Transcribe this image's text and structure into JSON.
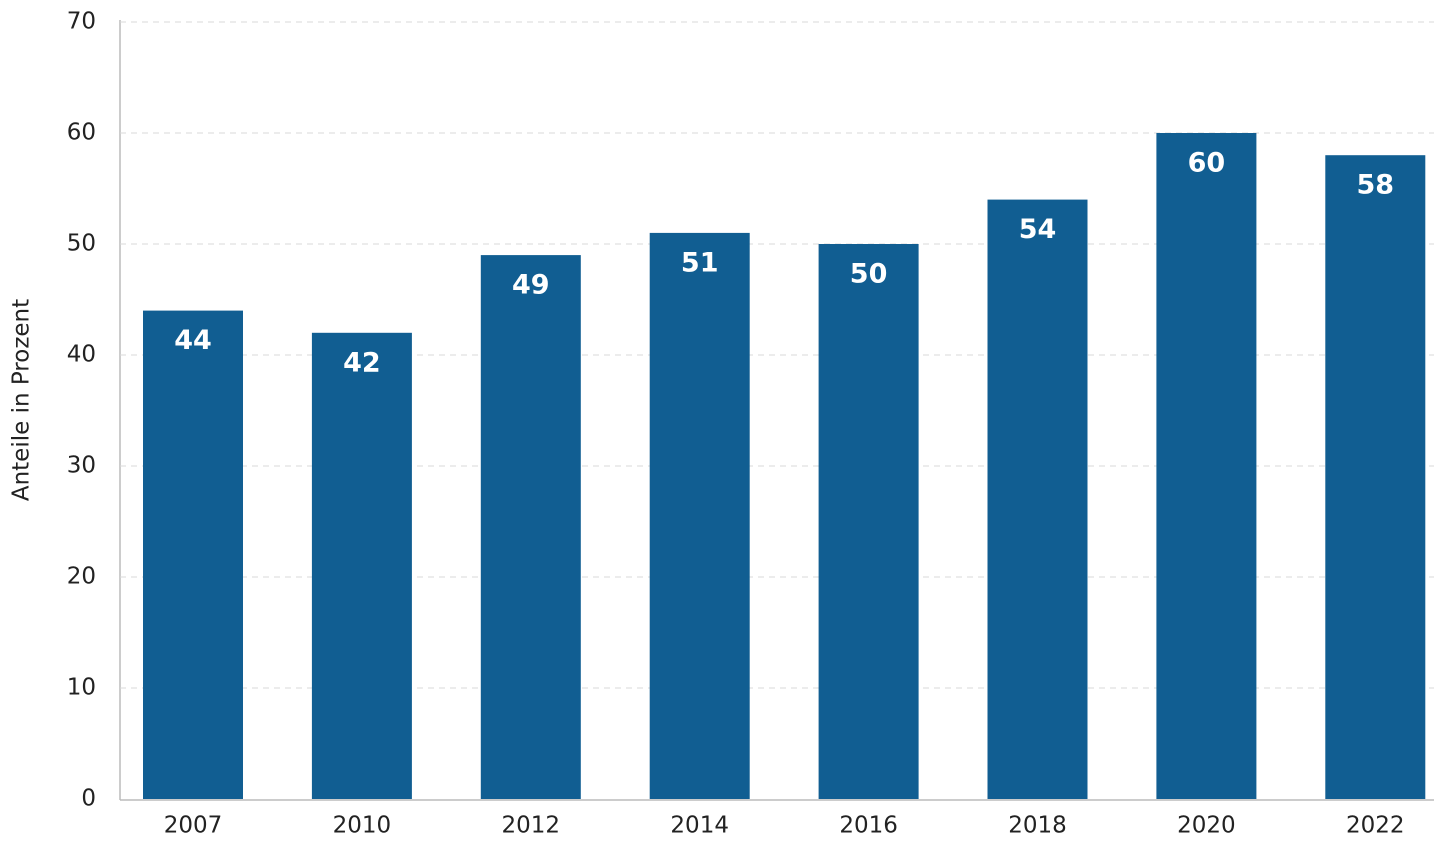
{
  "chart_data": {
    "type": "bar",
    "y_label": "Anteile in Prozent",
    "categories": [
      "2007",
      "2010",
      "2012",
      "2014",
      "2016",
      "2018",
      "2020",
      "2022"
    ],
    "values": [
      44,
      42,
      49,
      51,
      50,
      54,
      60,
      58
    ],
    "color": "#115e92",
    "ylim": [
      0,
      70
    ],
    "yticks": [
      0,
      10,
      20,
      30,
      40,
      50,
      60,
      70
    ],
    "grid": true
  }
}
